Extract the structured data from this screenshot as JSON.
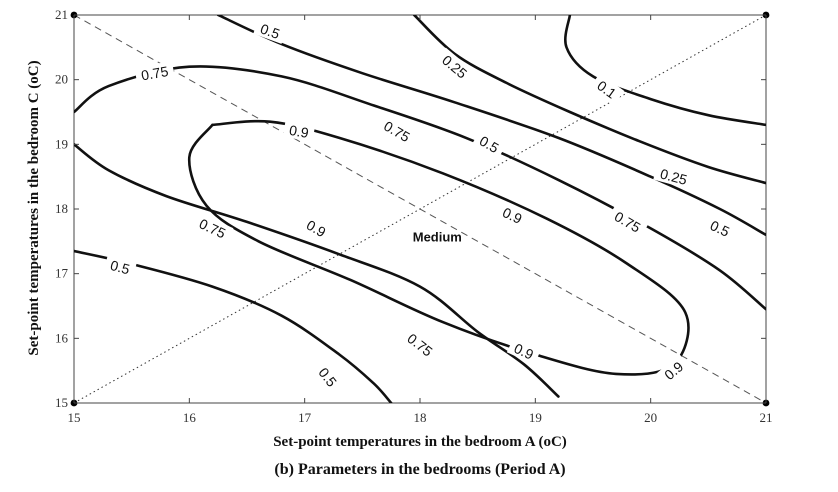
{
  "chart_data": {
    "type": "contour",
    "caption": "(b) Parameters in the bedrooms (Period A)",
    "xlabel": "Set-point temperatures in the bedroom A (oC)",
    "ylabel": "Set-point temperatures in the bedroom C (oC)",
    "xlim": [
      15,
      21
    ],
    "ylim": [
      15,
      21
    ],
    "x_ticks": [
      "15",
      "16",
      "17",
      "18",
      "19",
      "20",
      "21"
    ],
    "y_ticks": [
      "15",
      "16",
      "17",
      "18",
      "19",
      "20",
      "21"
    ],
    "grid": false,
    "annotation": "Medium",
    "contours": [
      {
        "level": "0.1",
        "points": [
          [
            19.3,
            21
          ],
          [
            19.27,
            20.5
          ],
          [
            19.5,
            20.05
          ],
          [
            20.0,
            19.7
          ],
          [
            20.5,
            19.45
          ],
          [
            21,
            19.3
          ]
        ]
      },
      {
        "level": "0.25",
        "points": [
          [
            17.95,
            21
          ],
          [
            18.3,
            20.4
          ],
          [
            18.75,
            19.95
          ],
          [
            19.3,
            19.5
          ],
          [
            19.9,
            19.05
          ],
          [
            20.5,
            18.65
          ],
          [
            21,
            18.4
          ]
        ]
      },
      {
        "level": "0.5",
        "points": [
          [
            16.25,
            21
          ],
          [
            16.8,
            20.55
          ],
          [
            17.5,
            20.1
          ],
          [
            18.3,
            19.65
          ],
          [
            19.2,
            19.1
          ],
          [
            20.0,
            18.5
          ],
          [
            20.6,
            18.0
          ],
          [
            21,
            17.6
          ]
        ]
      },
      {
        "level": "0.75",
        "points": [
          [
            15,
            19.5
          ],
          [
            15.3,
            19.9
          ],
          [
            16.0,
            20.2
          ],
          [
            16.8,
            20.05
          ],
          [
            17.6,
            19.6
          ],
          [
            18.4,
            19.1
          ],
          [
            19.2,
            18.45
          ],
          [
            20.0,
            17.7
          ],
          [
            20.6,
            17.05
          ],
          [
            21,
            16.45
          ]
        ]
      },
      {
        "level": "0.75",
        "points": [
          [
            15,
            19.0
          ],
          [
            15.3,
            18.6
          ],
          [
            15.8,
            18.2
          ],
          [
            16.5,
            17.8
          ],
          [
            17.3,
            17.3
          ],
          [
            18.0,
            16.8
          ],
          [
            18.5,
            16.1
          ],
          [
            18.9,
            15.6
          ],
          [
            19.2,
            15.1
          ]
        ]
      },
      {
        "level": "0.9",
        "points": [
          [
            16.2,
            19.3
          ],
          [
            16.7,
            19.35
          ],
          [
            17.3,
            19.1
          ],
          [
            18.2,
            18.55
          ],
          [
            19.1,
            17.85
          ],
          [
            19.8,
            17.15
          ],
          [
            20.3,
            16.4
          ],
          [
            20.2,
            15.6
          ],
          [
            19.7,
            15.45
          ],
          [
            19.0,
            15.75
          ],
          [
            18.2,
            16.25
          ],
          [
            17.4,
            16.9
          ],
          [
            16.6,
            17.5
          ],
          [
            16.15,
            18.05
          ],
          [
            16.0,
            18.8
          ],
          [
            16.2,
            19.3
          ]
        ]
      },
      {
        "level": "0.5",
        "points": [
          [
            15,
            17.35
          ],
          [
            15.5,
            17.15
          ],
          [
            16.2,
            16.8
          ],
          [
            16.8,
            16.35
          ],
          [
            17.3,
            15.75
          ],
          [
            17.6,
            15.3
          ],
          [
            17.75,
            15.0
          ]
        ]
      }
    ],
    "contour_labels": [
      {
        "text": "0.1",
        "x": 19.62,
        "y": 19.85,
        "angle": 36
      },
      {
        "text": "0.25",
        "x": 18.3,
        "y": 20.2,
        "angle": 40
      },
      {
        "text": "0.25",
        "x": 20.2,
        "y": 18.5,
        "angle": 15
      },
      {
        "text": "0.5",
        "x": 16.7,
        "y": 20.75,
        "angle": 20
      },
      {
        "text": "0.5",
        "x": 18.6,
        "y": 19.0,
        "angle": 30
      },
      {
        "text": "0.5",
        "x": 20.6,
        "y": 17.7,
        "angle": 25
      },
      {
        "text": "0.5",
        "x": 15.4,
        "y": 17.1,
        "angle": 15
      },
      {
        "text": "0.5",
        "x": 17.2,
        "y": 15.4,
        "angle": 52
      },
      {
        "text": "0.75",
        "x": 15.7,
        "y": 20.1,
        "angle": -10
      },
      {
        "text": "0.75",
        "x": 17.8,
        "y": 19.2,
        "angle": 30
      },
      {
        "text": "0.75",
        "x": 19.8,
        "y": 17.8,
        "angle": 30
      },
      {
        "text": "0.75",
        "x": 16.2,
        "y": 17.7,
        "angle": 25
      },
      {
        "text": "0.75",
        "x": 18.0,
        "y": 15.9,
        "angle": 38
      },
      {
        "text": "0.9",
        "x": 16.95,
        "y": 19.2,
        "angle": 10
      },
      {
        "text": "0.9",
        "x": 18.8,
        "y": 17.9,
        "angle": 25
      },
      {
        "text": "0.9",
        "x": 17.1,
        "y": 17.7,
        "angle": 30
      },
      {
        "text": "0.9",
        "x": 18.9,
        "y": 15.8,
        "angle": 25
      },
      {
        "text": "0.9",
        "x": 20.2,
        "y": 15.5,
        "angle": -40
      }
    ],
    "dashed_line": [
      [
        15,
        21
      ],
      [
        21,
        15
      ]
    ],
    "dotted_line": [
      [
        15,
        15
      ],
      [
        21,
        21
      ]
    ],
    "markers": [
      [
        15,
        21
      ],
      [
        21,
        21
      ],
      [
        15,
        15
      ],
      [
        21,
        15
      ]
    ],
    "annotation_point": [
      18.15,
      17.5
    ]
  }
}
